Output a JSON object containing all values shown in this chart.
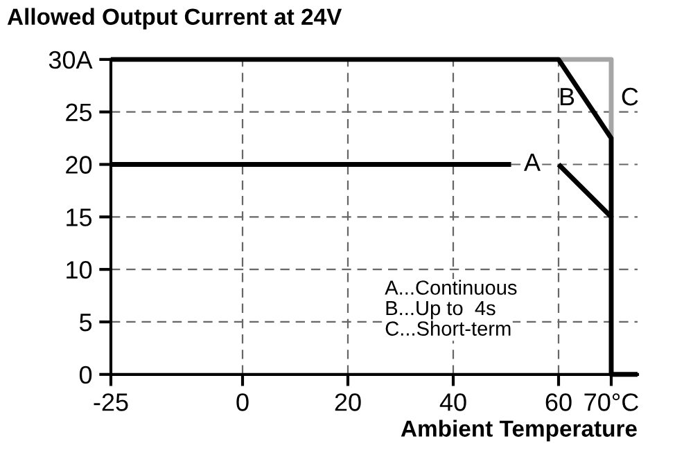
{
  "chart_data": {
    "type": "line",
    "title": "Allowed Output Current at 24V",
    "xlabel": "Ambient Temperature",
    "series": [
      {
        "name": "C",
        "color": "#a6a6a6",
        "x": [
          60,
          70,
          70
        ],
        "values": [
          30,
          30,
          22.5
        ]
      },
      {
        "name": "A",
        "color": "#000000",
        "x": [
          -25,
          51,
          55,
          60,
          70,
          70,
          75
        ],
        "values": [
          20,
          20,
          null,
          20,
          15,
          0,
          0
        ]
      },
      {
        "name": "B",
        "color": "#000000",
        "x": [
          -25,
          60,
          70,
          70
        ],
        "values": [
          30,
          30,
          22.5,
          15
        ]
      }
    ],
    "annotations": [
      "A...Continuous",
      "B...Up to  4s",
      "C...Short-term"
    ],
    "xlim": [
      -25,
      75
    ],
    "ylim": [
      0,
      30
    ],
    "xticks": [
      -25,
      0,
      20,
      40,
      60,
      {
        "value": 70,
        "label": "70°C"
      }
    ],
    "yticks": [
      0,
      5,
      10,
      15,
      20,
      25,
      {
        "value": 30,
        "label": "30A"
      }
    ],
    "grid": true,
    "line_style": "solid",
    "marker": "none"
  }
}
